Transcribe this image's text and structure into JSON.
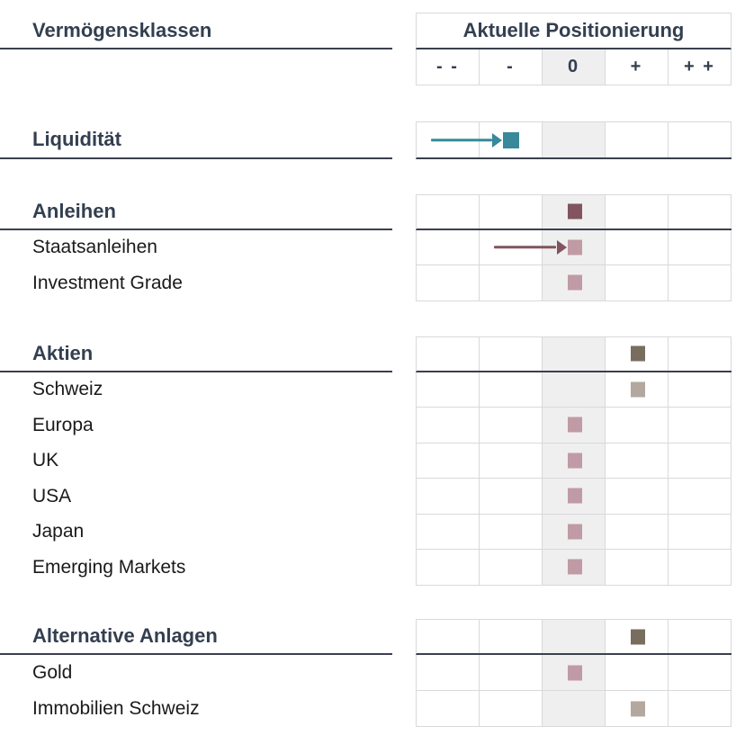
{
  "colors": {
    "heading_text": "#333F50",
    "body_text": "#1A1A1A",
    "rule_dark": "#3B404E",
    "grid_line": "#D9D9DE",
    "neutral_col_bg": "#EFEFEF",
    "background": "#FFFFFF",
    "teal": "#38899A",
    "maroon_dark": "#81545F",
    "mauve": "#C09BA5",
    "taupe_dark": "#796D60",
    "taupe_light": "#B3A89F"
  },
  "chart_data": {
    "type": "table",
    "row_header": "Vermögensklassen",
    "title": "Aktuelle Positionierung",
    "columns": [
      "- -",
      "-",
      "0",
      "+",
      "+ +"
    ],
    "neutral_column": "0",
    "legend_position": "none",
    "grid": true,
    "sections": [
      {
        "rows": [
          {
            "label": "Liquidität",
            "is_group_header": true,
            "position": "-",
            "marker_color": "teal",
            "arrow_from": "- -",
            "arrow_color": "teal"
          }
        ]
      },
      {
        "rows": [
          {
            "label": "Anleihen",
            "is_group_header": true,
            "position": "0",
            "marker_color": "maroon_dark"
          },
          {
            "label": "Staatsanleihen",
            "position": "0",
            "marker_color": "mauve",
            "arrow_from": "-",
            "arrow_color": "maroon_dark"
          },
          {
            "label": "Investment Grade",
            "position": "0",
            "marker_color": "mauve"
          }
        ]
      },
      {
        "rows": [
          {
            "label": "Aktien",
            "is_group_header": true,
            "position": "+",
            "marker_color": "taupe_dark"
          },
          {
            "label": "Schweiz",
            "position": "+",
            "marker_color": "taupe_light"
          },
          {
            "label": "Europa",
            "position": "0",
            "marker_color": "mauve"
          },
          {
            "label": "UK",
            "position": "0",
            "marker_color": "mauve"
          },
          {
            "label": "USA",
            "position": "0",
            "marker_color": "mauve"
          },
          {
            "label": "Japan",
            "position": "0",
            "marker_color": "mauve"
          },
          {
            "label": "Emerging Markets",
            "position": "0",
            "marker_color": "mauve"
          }
        ]
      },
      {
        "rows": [
          {
            "label": "Alternative Anlagen",
            "is_group_header": true,
            "position": "+",
            "marker_color": "taupe_dark"
          },
          {
            "label": "Gold",
            "position": "0",
            "marker_color": "mauve"
          },
          {
            "label": "Immobilien Schweiz",
            "position": "+",
            "marker_color": "taupe_light"
          }
        ]
      }
    ]
  }
}
